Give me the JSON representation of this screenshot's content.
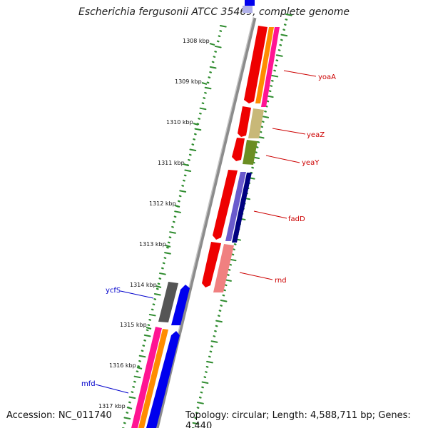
{
  "title": "Escherichia fergusonii ATCC 35469, complete genome",
  "accession": "Accession: NC_011740",
  "topology": "Topology: circular; Length: 4,588,711 bp; Genes: 4,440",
  "kbp_labels": [
    "1308 kbp",
    "1309 kbp",
    "1310 kbp",
    "1311 kbp",
    "1312 kbp",
    "1313 kbp",
    "1314 kbp",
    "1315 kbp",
    "1316 kbp",
    "1317 kbp"
  ],
  "gene_labels": [
    {
      "name": "yoaA",
      "color": "#cc0000"
    },
    {
      "name": "yeaZ",
      "color": "#cc0000"
    },
    {
      "name": "yeaY",
      "color": "#cc0000"
    },
    {
      "name": "fadD",
      "color": "#cc0000"
    },
    {
      "name": "rnd",
      "color": "#cc0000"
    },
    {
      "name": "ycfS",
      "color": "#0000cc"
    },
    {
      "name": "mfd",
      "color": "#0000cc"
    }
  ],
  "colors": {
    "backbone": "#8c8c8c",
    "tick_green": "#2e8b2e",
    "cds_red": "#ee0000",
    "gene_orange": "#ff8c00",
    "gene_pink": "#ff1493",
    "yeaZ_khaki": "#c8b878",
    "yeaY_olive": "#6b8e23",
    "fadD_blue": "#6a5acd",
    "fadD_navy": "#000080",
    "rnd_salmon": "#f08080",
    "ycfS_gray": "#555555",
    "reverse_blue": "#0000ee"
  }
}
